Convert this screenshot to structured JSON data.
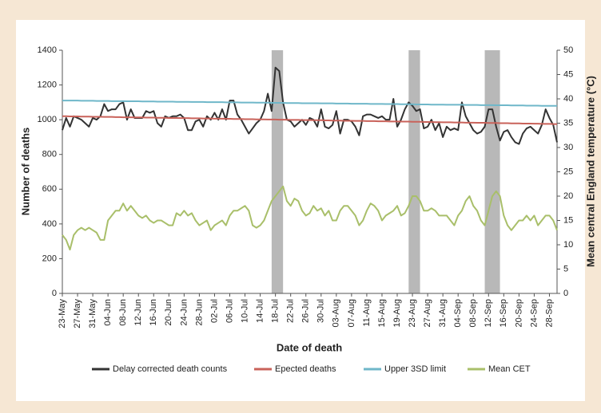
{
  "chart_data": {
    "type": "line",
    "x_label": "Date of death",
    "y_label": "Number of deaths",
    "y2_label": "Mean central England temperature (°C)",
    "categories": [
      "23-May",
      null,
      null,
      null,
      "27-May",
      null,
      null,
      null,
      "31-May",
      null,
      null,
      null,
      "04-Jun",
      null,
      null,
      null,
      "08-Jun",
      null,
      null,
      null,
      "12-Jun",
      null,
      null,
      null,
      "16-Jun",
      null,
      null,
      null,
      "20-Jun",
      null,
      null,
      null,
      "24-Jun",
      null,
      null,
      null,
      "28-Jun",
      null,
      null,
      null,
      "02-Jul",
      null,
      null,
      null,
      "06-Jul",
      null,
      null,
      null,
      "10-Jul",
      null,
      null,
      null,
      "14-Jul",
      null,
      null,
      null,
      "18-Jul",
      null,
      null,
      null,
      "22-Jul",
      null,
      null,
      null,
      "26-Jul",
      null,
      null,
      null,
      "30-Jul",
      null,
      null,
      null,
      "03-Aug",
      null,
      null,
      null,
      "07-Aug",
      null,
      null,
      null,
      "11-Aug",
      null,
      null,
      null,
      "15-Aug",
      null,
      null,
      null,
      "19-Aug",
      null,
      null,
      null,
      "23-Aug",
      null,
      null,
      null,
      "27-Aug",
      null,
      null,
      null,
      "31-Aug",
      null,
      null,
      null,
      "04-Sep",
      null,
      null,
      null,
      "08-Sep",
      null,
      null,
      null,
      "12-Sep",
      null,
      null,
      null,
      "16-Sep",
      null,
      null,
      null,
      "20-Sep",
      null,
      null,
      null,
      "24-Sep",
      null,
      null,
      null,
      "28-Sep",
      null,
      null
    ],
    "series": [
      {
        "name": "Delay corrected death counts",
        "color": "#333333",
        "values": [
          940,
          1010,
          960,
          1020,
          1010,
          1000,
          980,
          960,
          1010,
          1000,
          1020,
          1090,
          1050,
          1060,
          1060,
          1090,
          1100,
          1000,
          1060,
          1010,
          1010,
          1010,
          1050,
          1040,
          1050,
          980,
          960,
          1020,
          1010,
          1020,
          1020,
          1030,
          1010,
          940,
          940,
          990,
          1000,
          960,
          1020,
          1000,
          1040,
          1000,
          1060,
          1000,
          1110,
          1110,
          1030,
          1000,
          960,
          920,
          950,
          980,
          1000,
          1050,
          1150,
          1050,
          1300,
          1280,
          1100,
          1000,
          990,
          960,
          980,
          1000,
          970,
          1010,
          1000,
          960,
          1060,
          960,
          950,
          970,
          1050,
          920,
          1000,
          1000,
          990,
          960,
          910,
          1020,
          1030,
          1030,
          1020,
          1010,
          1020,
          1000,
          1000,
          1120,
          960,
          1000,
          1060,
          1100,
          1080,
          1050,
          1060,
          950,
          960,
          1000,
          940,
          980,
          900,
          960,
          940,
          950,
          940,
          1100,
          1020,
          980,
          940,
          920,
          930,
          960,
          1060,
          1060,
          960,
          880,
          930,
          940,
          900,
          870,
          860,
          920,
          950,
          960,
          940,
          920,
          970,
          1060,
          1010,
          970,
          870
        ]
      },
      {
        "name": "Epected deaths",
        "color": "#c9625a",
        "values": [
          1020,
          1020,
          1019,
          1019,
          1019,
          1018,
          1018,
          1018,
          1017,
          1017,
          1017,
          1016,
          1016,
          1016,
          1015,
          1015,
          1014,
          1014,
          1014,
          1013,
          1013,
          1013,
          1012,
          1012,
          1012,
          1011,
          1011,
          1011,
          1010,
          1010,
          1010,
          1009,
          1009,
          1009,
          1008,
          1008,
          1008,
          1007,
          1007,
          1007,
          1006,
          1006,
          1006,
          1005,
          1005,
          1004,
          1004,
          1004,
          1003,
          1003,
          1003,
          1002,
          1002,
          1002,
          1001,
          1001,
          1001,
          1000,
          1000,
          1000,
          999,
          999,
          999,
          998,
          998,
          998,
          997,
          997,
          997,
          996,
          996,
          995,
          995,
          995,
          994,
          994,
          994,
          993,
          993,
          993,
          992,
          992,
          992,
          991,
          991,
          991,
          990,
          990,
          990,
          989,
          989,
          989,
          988,
          988,
          988,
          987,
          987,
          987,
          986,
          986,
          985,
          985,
          985,
          984,
          984,
          984,
          983,
          983,
          983,
          982,
          982,
          982,
          981,
          981,
          981,
          980,
          980,
          980,
          979,
          979,
          979,
          978,
          978,
          978,
          977,
          977,
          976,
          976,
          976,
          975,
          975
        ]
      },
      {
        "name": "Upper 3SD limit",
        "color": "#6fb7c9",
        "values": [
          1110,
          1110,
          1110,
          1110,
          1110,
          1109,
          1109,
          1109,
          1109,
          1108,
          1108,
          1108,
          1108,
          1107,
          1107,
          1107,
          1107,
          1106,
          1106,
          1106,
          1106,
          1105,
          1105,
          1105,
          1105,
          1104,
          1104,
          1104,
          1104,
          1104,
          1103,
          1103,
          1103,
          1103,
          1102,
          1102,
          1102,
          1102,
          1101,
          1101,
          1101,
          1101,
          1101,
          1100,
          1100,
          1100,
          1100,
          1099,
          1099,
          1099,
          1099,
          1098,
          1098,
          1098,
          1098,
          1097,
          1097,
          1097,
          1097,
          1096,
          1096,
          1096,
          1096,
          1095,
          1095,
          1095,
          1095,
          1095,
          1094,
          1094,
          1094,
          1094,
          1093,
          1093,
          1093,
          1093,
          1092,
          1092,
          1092,
          1092,
          1092,
          1091,
          1091,
          1091,
          1091,
          1090,
          1090,
          1090,
          1090,
          1089,
          1089,
          1089,
          1089,
          1088,
          1088,
          1088,
          1088,
          1087,
          1087,
          1087,
          1087,
          1086,
          1086,
          1086,
          1086,
          1086,
          1085,
          1085,
          1085,
          1085,
          1084,
          1084,
          1084,
          1084,
          1083,
          1083,
          1083,
          1083,
          1082,
          1082,
          1082,
          1082,
          1081,
          1081,
          1081,
          1081,
          1080,
          1080,
          1080,
          1080,
          1080
        ]
      },
      {
        "name": "Mean CET",
        "color": "#a9bf6a",
        "axis": "y2",
        "values": [
          12,
          11,
          9,
          12,
          13,
          13.5,
          13,
          13.5,
          13,
          12.5,
          11,
          11,
          15,
          16,
          17,
          17,
          18.5,
          17,
          18,
          17,
          16,
          15.5,
          16,
          15,
          14.5,
          15,
          15,
          14.5,
          14,
          14,
          16.5,
          16,
          17,
          16,
          16.5,
          15,
          14,
          14.5,
          15,
          13,
          14,
          14.5,
          15,
          14,
          16,
          17,
          17,
          17.5,
          18,
          17,
          14,
          13.5,
          14,
          15,
          17,
          19,
          20,
          21,
          22,
          19,
          18,
          19.5,
          19,
          17,
          16,
          16.5,
          18,
          17,
          17.5,
          16,
          17,
          15,
          15,
          17,
          18,
          18,
          17,
          16,
          14,
          15,
          17,
          18.5,
          18,
          17,
          15,
          16,
          16.5,
          17,
          18,
          16,
          16.5,
          18,
          20,
          20,
          19,
          17,
          17,
          17.5,
          17,
          16,
          16,
          16,
          15,
          14,
          16,
          17,
          19,
          20,
          18,
          17,
          15,
          14,
          17,
          20,
          21,
          20,
          16,
          14,
          13,
          14,
          15,
          15,
          16,
          15,
          16,
          14,
          15,
          16,
          16,
          15,
          13
        ]
      }
    ],
    "shaded_spans": [
      [
        55,
        58
      ],
      [
        91,
        94
      ],
      [
        111,
        115
      ]
    ],
    "shade_color": "#b8b8b8",
    "ylim": [
      0,
      1400
    ],
    "yticks": [
      0,
      200,
      400,
      600,
      800,
      1000,
      1200,
      1400
    ],
    "y2lim": [
      0,
      50
    ],
    "y2ticks": [
      0,
      5,
      10,
      15,
      20,
      25,
      30,
      35,
      40,
      45,
      50
    ],
    "legend": "bottom"
  }
}
